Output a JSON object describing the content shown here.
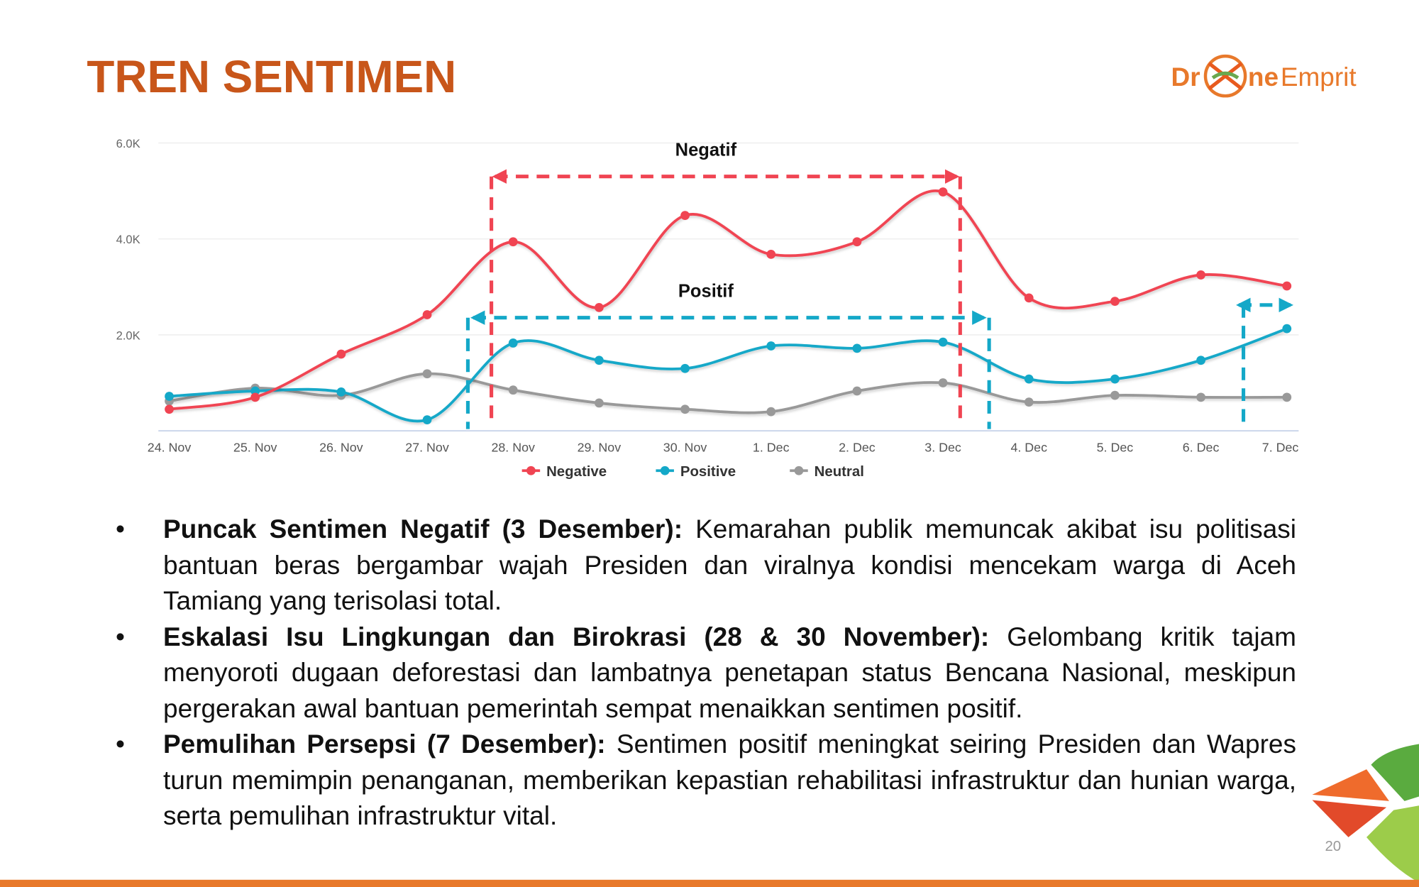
{
  "slide_title": "TREN SENTIMEN",
  "logo": {
    "prefix": "Dr",
    "middle": "ne",
    "suffix": "Emprit"
  },
  "chart_data": {
    "type": "line",
    "categories": [
      "24. Nov",
      "25. Nov",
      "26. Nov",
      "27. Nov",
      "28. Nov",
      "29. Nov",
      "30. Nov",
      "1. Dec",
      "2. Dec",
      "3. Dec",
      "4. Dec",
      "5. Dec",
      "6. Dec",
      "7. Dec"
    ],
    "series": [
      {
        "name": "Negative",
        "color": "#f04452",
        "values": [
          450,
          700,
          1600,
          2420,
          3940,
          2570,
          4490,
          3680,
          3940,
          4980,
          2770,
          2700,
          3250,
          3020
        ]
      },
      {
        "name": "Positive",
        "color": "#14a8c8",
        "values": [
          720,
          830,
          810,
          230,
          1830,
          1470,
          1300,
          1770,
          1720,
          1850,
          1080,
          1080,
          1470,
          2130
        ]
      },
      {
        "name": "Neutral",
        "color": "#999999",
        "values": [
          620,
          890,
          740,
          1190,
          850,
          580,
          450,
          400,
          830,
          1000,
          600,
          740,
          700,
          700
        ]
      }
    ],
    "ylim": [
      0,
      6000
    ],
    "yticks": [
      {
        "value": 2000,
        "label": "2.0K"
      },
      {
        "value": 4000,
        "label": "4.0K"
      },
      {
        "value": 6000,
        "label": "6.0K"
      }
    ],
    "grid": true,
    "legend": "bottom",
    "annotations": [
      "Negatif",
      "Positif"
    ]
  },
  "bullets": [
    {
      "bold": "Puncak Sentimen Negatif (3 Desember):",
      "text": " Kemarahan publik memuncak akibat isu politisasi bantuan beras bergambar wajah Presiden dan viralnya kondisi mencekam warga di Aceh Tamiang yang terisolasi total."
    },
    {
      "bold": "Eskalasi Isu Lingkungan dan Birokrasi (28 & 30 November):",
      "text": " Gelombang kritik tajam menyoroti dugaan deforestasi dan lambatnya penetapan status Bencana Nasional, meskipun pergerakan awal bantuan pemerintah sempat menaikkan sentimen positif."
    },
    {
      "bold": "Pemulihan Persepsi (7 Desember):",
      "text": " Sentimen positif meningkat seiring Presiden dan Wapres turun memimpin penanganan, memberikan kepastian rehabilitasi infrastruktur dan hunian warga, serta pemulihan infrastruktur vital."
    }
  ],
  "page_number": "20"
}
